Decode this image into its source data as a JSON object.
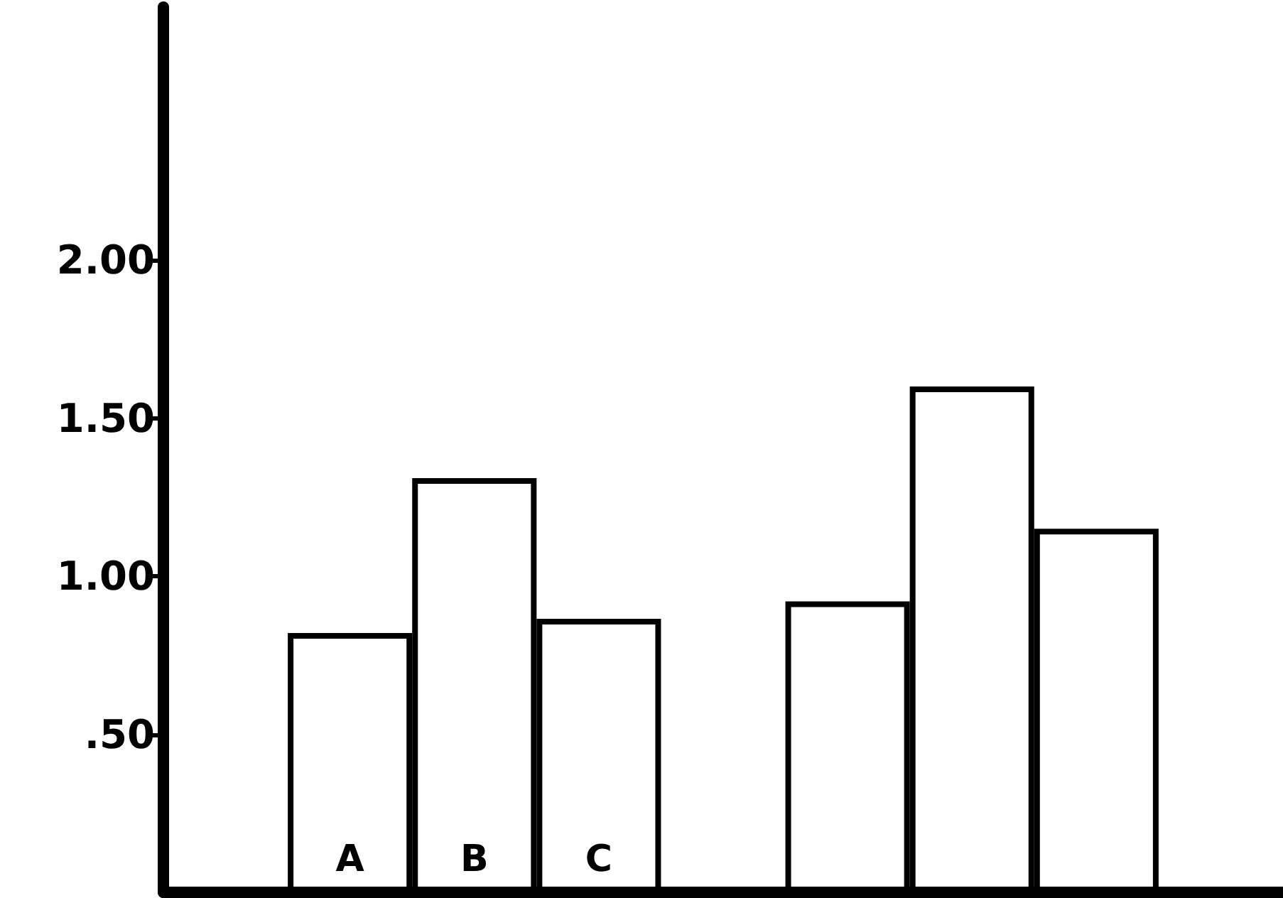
{
  "chart_data": {
    "type": "bar",
    "categories": [
      null,
      "A",
      "B",
      "C",
      null,
      null,
      null,
      null,
      null
    ],
    "values": [
      null,
      0.82,
      1.31,
      0.865,
      null,
      0.92,
      1.6,
      1.15,
      null
    ],
    "color": "#ffffff",
    "ylim": [
      0,
      2.8
    ],
    "yticks": [
      {
        "value": 0.5,
        "label": ".50"
      },
      {
        "value": 1,
        "label": "1.00"
      },
      {
        "value": 1.5,
        "label": "1.50"
      },
      {
        "value": 2,
        "label": "2.00"
      }
    ],
    "grid": false
  }
}
